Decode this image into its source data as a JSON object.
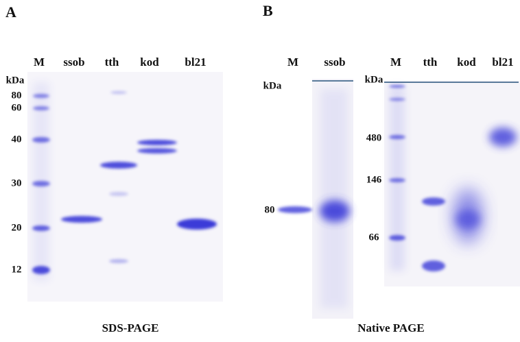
{
  "panel_a": {
    "letter": "A",
    "lanes": [
      "M",
      "ssob",
      "tth",
      "kod",
      "bl21"
    ],
    "unit": "kDa",
    "markers": [
      "80",
      "60",
      "40",
      "30",
      "20",
      "12"
    ],
    "caption": "SDS-PAGE"
  },
  "panel_b": {
    "letter": "B",
    "left_lanes": [
      "M",
      "ssob"
    ],
    "left_unit": "kDa",
    "left_marker": "80",
    "right_lanes": [
      "M",
      "tth",
      "kod",
      "bl21"
    ],
    "right_unit": "kDa",
    "right_markers": [
      "480",
      "146",
      "66"
    ],
    "caption": "Native PAGE"
  }
}
